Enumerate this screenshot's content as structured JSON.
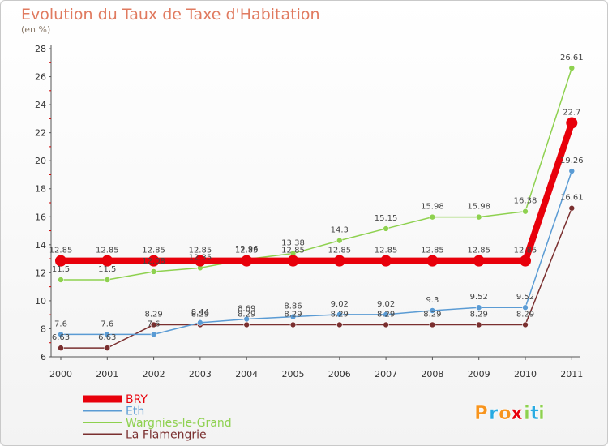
{
  "chart_data": {
    "type": "line",
    "title": "Evolution du Taux de Taxe d'Habitation",
    "subtitle": "(en %)",
    "x": [
      "2000",
      "2001",
      "2002",
      "2003",
      "2004",
      "2005",
      "2006",
      "2007",
      "2008",
      "2009",
      "2010",
      "2011"
    ],
    "ylim": [
      6,
      28
    ],
    "yticks": [
      6,
      8,
      10,
      12,
      14,
      16,
      18,
      20,
      22,
      24,
      26,
      28
    ],
    "grid": false,
    "legend_position": "bottom-left",
    "series": [
      {
        "name": "BRY",
        "color": "#e8000b",
        "values": [
          12.85,
          12.85,
          12.85,
          12.85,
          12.85,
          12.85,
          12.85,
          12.85,
          12.85,
          12.85,
          12.85,
          22.7
        ],
        "labels": [
          "12.85",
          "12.85",
          "12.85",
          "12.85",
          "12.85",
          "12.85",
          "12.85",
          "12.85",
          "12.85",
          "12.85",
          "12.85",
          "22.7"
        ]
      },
      {
        "name": "Eth",
        "color": "#5a9bd4",
        "values": [
          7.6,
          7.6,
          7.6,
          8.44,
          8.69,
          8.86,
          9.02,
          9.02,
          9.3,
          9.52,
          9.52,
          19.26
        ],
        "labels": [
          "7.6",
          "7.6",
          "7.6",
          "8.44",
          "8.69",
          "8.86",
          "9.02",
          "9.02",
          "9.3",
          "9.52",
          "9.52",
          "19.26"
        ]
      },
      {
        "name": "Wargnies-le-Grand",
        "color": "#8ed14f",
        "values": [
          11.5,
          11.5,
          12.08,
          12.35,
          12.96,
          13.38,
          14.3,
          15.15,
          15.98,
          15.98,
          16.38,
          26.61
        ],
        "labels": [
          "11.5",
          "11.5",
          "12.08",
          "12.35",
          "12.96",
          "13.38",
          "14.3",
          "15.15",
          "15.98",
          "15.98",
          "16.38",
          "26.61"
        ]
      },
      {
        "name": "La Flamengrie",
        "color": "#7a2f2f",
        "values": [
          6.63,
          6.63,
          8.29,
          8.29,
          8.29,
          8.29,
          8.29,
          8.29,
          8.29,
          8.29,
          8.29,
          16.61
        ],
        "labels": [
          "6.63",
          "6.63",
          "8.29",
          "8.29",
          "8.29",
          "8.29",
          "8.29",
          "8.29",
          "8.29",
          "8.29",
          "8.29",
          "16.61"
        ]
      }
    ]
  },
  "logo": {
    "text": "Proxiti",
    "letters": [
      "P",
      "r",
      "o",
      "x",
      "i",
      "t",
      "i"
    ],
    "letter_colors": [
      "#f7941d",
      "#29abe2",
      "#f7941d",
      "#e8000b",
      "#8ed14f",
      "#29abe2",
      "#8ed14f"
    ]
  }
}
